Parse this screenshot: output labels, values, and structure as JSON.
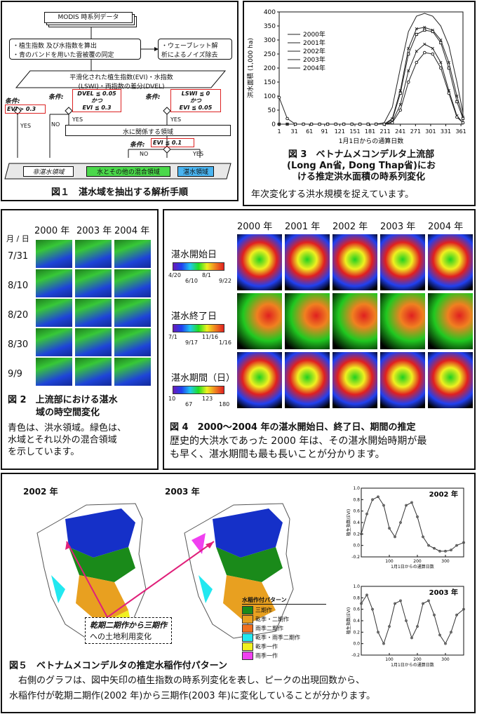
{
  "fig1": {
    "top_label": "MODIS 時系列データ",
    "step1_lines": [
      "・植生指数 及び水指数を算出",
      "・青のバンドを用いた雲被覆の同定"
    ],
    "step_wavelet": [
      "・ウェーブレット解",
      "析によるノイズ除去"
    ],
    "smoothed": [
      "平滑化された植生指数(EVI)・水指数",
      "(LSWI)・両指数の差分(DVEL)"
    ],
    "cond_label": "条件:",
    "cond_evi": "EVI > 0.3",
    "cond_dvel": [
      "DVEL ≦ 0.05",
      "かつ",
      "EVI  ≦ 0.3"
    ],
    "cond_lswi": [
      "LSWI ≦  0",
      "かつ",
      "EVI  ≦ 0.05"
    ],
    "yes": "YES",
    "no": "NO",
    "water_related": "水に関係する領域",
    "cond_evi2": "EVI ≦ 0.1",
    "out_nonflood": "非湛水領域",
    "out_mixed": "水とその他の混合領域",
    "out_flood": "湛水領域",
    "caption": "図１　湛水域を抽出する解析手順"
  },
  "fig3": {
    "caption": [
      "図 3　ベトナムメコンデルタ上流部",
      "(Long An省, Dong Thap省)にお",
      "ける推定洪水面積の時系列変化"
    ],
    "desc": "年次変化する洪水規模を捉えています。"
  },
  "fig2": {
    "header_md": "月 / 日",
    "years": [
      "2000 年",
      "2003 年",
      "2004 年"
    ],
    "dates": [
      "7/31",
      "8/10",
      "8/20",
      "8/30",
      "9/9"
    ],
    "caption": [
      "図 2　上流部における湛水",
      "域の時空間変化"
    ],
    "desc": [
      "青色は、洪水領域。緑色は、",
      "水域とそれ以外の混合領域",
      "を示しています。"
    ]
  },
  "fig4": {
    "years": [
      "2000 年",
      "2001 年",
      "2002 年",
      "2003 年",
      "2004 年"
    ],
    "legend1": {
      "title": "湛水開始日",
      "ticks": [
        "4/20",
        "6/10",
        "8/1",
        "9/22"
      ]
    },
    "legend2": {
      "title": "湛水終了日",
      "ticks": [
        "7/1",
        "9/17",
        "11/16",
        "1/16"
      ]
    },
    "legend3": {
      "title": "湛水期間（日）",
      "ticks": [
        "10",
        "67",
        "123",
        "180"
      ]
    },
    "caption": "図 4　2000～2004 年の湛水開始日、終了日、期間の推定",
    "desc": [
      "歴史的大洪水であった 2000 年は、その湛水開始時期が最",
      "も早く、湛水期間も最も長いことが分かります。"
    ]
  },
  "fig5": {
    "map_labels": [
      "2002 年",
      "2003 年"
    ],
    "arrow_note": [
      "乾期二期作から三期作",
      "への土地利用変化"
    ],
    "legend_title": "水稲作付パターン",
    "legend_items": [
      {
        "label": "三期作",
        "color": "#1a8a1a"
      },
      {
        "label": "乾季・二期作",
        "color": "#e8a020"
      },
      {
        "label": "雨季二期作",
        "color": "#f07020"
      },
      {
        "label": "乾季・雨季二期作",
        "color": "#22e8f0"
      },
      {
        "label": "乾季一作",
        "color": "#f0f020"
      },
      {
        "label": "雨季一作",
        "color": "#f040f0"
      }
    ],
    "caption": "図５　ベトナムメコンデルタの推定水稲作付パターン",
    "desc": [
      "　右側のグラフは、図中矢印の植生指数の時系列変化を表し、ピークの出現回数から、",
      "水稲作付が乾期二期作(2002 年)から三期作(2003 年)に変化していることが分かります。"
    ]
  },
  "chart_data": [
    {
      "type": "line",
      "ylabel": "洪水面積 (1,000 ha)",
      "xlabel": "1月1日からの通算日数",
      "xlim": [
        1,
        365
      ],
      "ylim": [
        0,
        400
      ],
      "xticks": [
        1,
        31,
        61,
        91,
        121,
        151,
        181,
        211,
        241,
        271,
        301,
        331,
        361
      ],
      "yticks": [
        0,
        50,
        100,
        150,
        200,
        250,
        300,
        350,
        400
      ],
      "legend_position": "top-left",
      "x": [
        1,
        17,
        33,
        49,
        65,
        81,
        97,
        113,
        129,
        145,
        161,
        177,
        193,
        209,
        225,
        241,
        257,
        273,
        289,
        305,
        321,
        337,
        353,
        365
      ],
      "series": [
        {
          "name": "2000年",
          "values": [
            0,
            0,
            0,
            0,
            0,
            0,
            0,
            0,
            0,
            0,
            0,
            0,
            0,
            5,
            60,
            200,
            330,
            385,
            395,
            385,
            350,
            280,
            150,
            40
          ]
        },
        {
          "name": "2001年",
          "values": [
            0,
            0,
            0,
            0,
            0,
            0,
            0,
            0,
            0,
            0,
            0,
            0,
            0,
            0,
            20,
            120,
            270,
            340,
            345,
            335,
            300,
            220,
            100,
            25
          ]
        },
        {
          "name": "2002年",
          "values": [
            0,
            0,
            0,
            0,
            0,
            0,
            0,
            0,
            0,
            0,
            0,
            0,
            0,
            0,
            15,
            110,
            250,
            320,
            335,
            330,
            290,
            200,
            80,
            20
          ]
        },
        {
          "name": "2003年",
          "values": [
            0,
            0,
            0,
            0,
            0,
            0,
            0,
            0,
            0,
            0,
            0,
            0,
            0,
            0,
            8,
            70,
            190,
            260,
            285,
            270,
            220,
            120,
            30,
            5
          ]
        },
        {
          "name": "2004年",
          "values": [
            95,
            20,
            0,
            0,
            0,
            0,
            0,
            0,
            0,
            0,
            0,
            0,
            0,
            0,
            5,
            50,
            150,
            220,
            255,
            250,
            200,
            110,
            25,
            5
          ]
        }
      ]
    },
    {
      "type": "line",
      "title": "2002 年",
      "ylabel": "植生指数(EVI)",
      "xlabel": "1月1日からの通算日数",
      "xlim": [
        0,
        365
      ],
      "ylim": [
        -0.2,
        1.0
      ],
      "xticks": [
        100,
        200,
        300
      ],
      "yticks": [
        -0.2,
        0.0,
        0.2,
        0.4,
        0.6,
        0.8,
        1.0
      ],
      "x": [
        0,
        20,
        40,
        60,
        80,
        100,
        120,
        140,
        160,
        180,
        200,
        220,
        240,
        260,
        280,
        300,
        320,
        340,
        365
      ],
      "series": [
        {
          "values": [
            0.2,
            0.55,
            0.8,
            0.85,
            0.7,
            0.3,
            0.15,
            0.4,
            0.7,
            0.75,
            0.5,
            0.15,
            0.0,
            -0.05,
            -0.1,
            -0.1,
            -0.08,
            0.0,
            0.05
          ]
        }
      ]
    },
    {
      "type": "line",
      "title": "2003 年",
      "ylabel": "植生指数(EVI)",
      "xlabel": "1月1日からの通算日数",
      "xlim": [
        0,
        365
      ],
      "ylim": [
        -0.2,
        1.0
      ],
      "xticks": [
        100,
        200,
        300
      ],
      "yticks": [
        -0.2,
        0.0,
        0.2,
        0.4,
        0.6,
        0.8,
        1.0
      ],
      "x": [
        0,
        20,
        40,
        60,
        80,
        100,
        120,
        140,
        160,
        180,
        200,
        220,
        240,
        260,
        280,
        300,
        320,
        340,
        365
      ],
      "series": [
        {
          "values": [
            0.7,
            0.85,
            0.6,
            0.2,
            0.0,
            0.3,
            0.7,
            0.75,
            0.4,
            0.1,
            0.3,
            0.7,
            0.75,
            0.5,
            0.15,
            0.0,
            0.2,
            0.5,
            0.6
          ]
        }
      ]
    }
  ]
}
